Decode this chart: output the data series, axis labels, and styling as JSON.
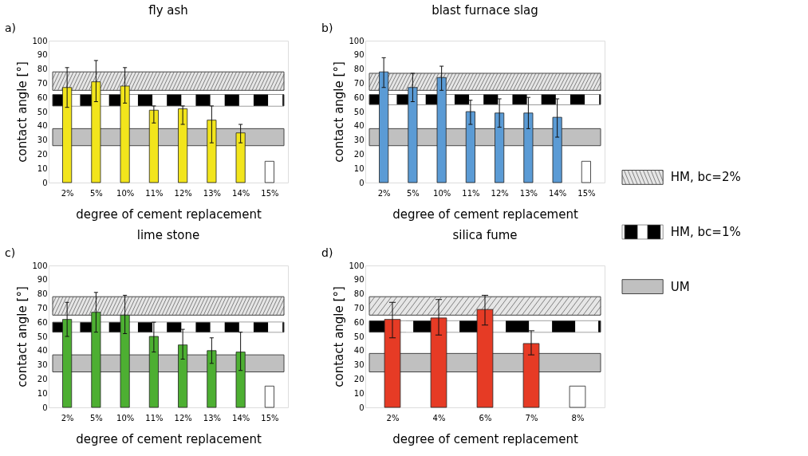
{
  "chart_data": [
    {
      "type": "bar",
      "title": "fly ash",
      "annotations": [
        "a)"
      ],
      "xlabel": "degree of cement replacement",
      "ylabel": "contact angle [°]",
      "categories": [
        "2%",
        "5%",
        "10%",
        "11%",
        "12%",
        "13%",
        "14%",
        "15%"
      ],
      "values": [
        67,
        71,
        68,
        51,
        52,
        44,
        35,
        15
      ],
      "colors": [
        "#f2e51c",
        "#f2e51c",
        "#f2e51c",
        "#f2e51c",
        "#f2e51c",
        "#f2e51c",
        "#f2e51c",
        "#ffffff"
      ],
      "errors": [
        [
          53,
          81
        ],
        [
          57,
          86
        ],
        [
          56,
          81
        ],
        [
          42,
          54
        ],
        [
          41,
          54
        ],
        [
          28,
          54
        ],
        [
          28,
          41
        ],
        null
      ],
      "ylim": [
        0,
        100
      ],
      "yticks": [
        0,
        10,
        20,
        30,
        40,
        50,
        60,
        70,
        80,
        90,
        100
      ],
      "bands": [
        {
          "axis": "y",
          "from": 65,
          "to": 78,
          "label": "HM, bc=2%",
          "color": "#e6e6e6"
        },
        {
          "axis": "y",
          "from": 54,
          "to": 62,
          "label": "HM, bc=1%",
          "color": "#000000"
        },
        {
          "axis": "y",
          "from": 26,
          "to": 38,
          "label": "UM",
          "color": "#c0c0c0"
        }
      ],
      "legend": "right"
    },
    {
      "type": "bar",
      "title": "blast furnace slag",
      "annotations": [
        "b)"
      ],
      "xlabel": "degree of cement replacement",
      "ylabel": "contact angle [°]",
      "categories": [
        "2%",
        "5%",
        "10%",
        "11%",
        "12%",
        "13%",
        "14%",
        "15%"
      ],
      "values": [
        78,
        67,
        74,
        50,
        49,
        49,
        46,
        15
      ],
      "colors": [
        "#5b9bd5",
        "#5b9bd5",
        "#5b9bd5",
        "#5b9bd5",
        "#5b9bd5",
        "#5b9bd5",
        "#5b9bd5",
        "#ffffff"
      ],
      "errors": [
        [
          67,
          88
        ],
        [
          57,
          77
        ],
        [
          65,
          82
        ],
        [
          41,
          58
        ],
        [
          39,
          59
        ],
        [
          38,
          60
        ],
        [
          32,
          59
        ],
        null
      ],
      "ylim": [
        0,
        100
      ],
      "yticks": [
        0,
        10,
        20,
        30,
        40,
        50,
        60,
        70,
        80,
        90,
        100
      ],
      "bands": [
        {
          "axis": "y",
          "from": 65,
          "to": 77,
          "color": "#e6e6e6"
        },
        {
          "axis": "y",
          "from": 55,
          "to": 62,
          "color": "#000000"
        },
        {
          "axis": "y",
          "from": 26,
          "to": 38,
          "color": "#c0c0c0"
        }
      ]
    },
    {
      "type": "bar",
      "title": "lime stone",
      "annotations": [
        "c)"
      ],
      "xlabel": "degree of cement replacement",
      "ylabel": "contact angle [°]",
      "categories": [
        "2%",
        "5%",
        "10%",
        "11%",
        "12%",
        "13%",
        "14%",
        "15%"
      ],
      "values": [
        62,
        67,
        65,
        50,
        44,
        40,
        39,
        15
      ],
      "colors": [
        "#4daf32",
        "#4daf32",
        "#4daf32",
        "#4daf32",
        "#4daf32",
        "#4daf32",
        "#4daf32",
        "#ffffff"
      ],
      "errors": [
        [
          50,
          74
        ],
        [
          53,
          81
        ],
        [
          52,
          79
        ],
        [
          39,
          60
        ],
        [
          34,
          55
        ],
        [
          31,
          49
        ],
        [
          26,
          53
        ],
        null
      ],
      "ylim": [
        0,
        100
      ],
      "yticks": [
        0,
        10,
        20,
        30,
        40,
        50,
        60,
        70,
        80,
        90,
        100
      ],
      "bands": [
        {
          "axis": "y",
          "from": 65,
          "to": 78,
          "color": "#e6e6e6"
        },
        {
          "axis": "y",
          "from": 53,
          "to": 60,
          "color": "#000000"
        },
        {
          "axis": "y",
          "from": 25,
          "to": 37,
          "color": "#c0c0c0"
        }
      ]
    },
    {
      "type": "bar",
      "title": "silica fume",
      "annotations": [
        "d)"
      ],
      "xlabel": "degree of cement replacement",
      "ylabel": "contact angle [°]",
      "categories": [
        "2%",
        "4%",
        "6%",
        "7%",
        "8%"
      ],
      "values": [
        62,
        63,
        69,
        45,
        15
      ],
      "colors": [
        "#e63b25",
        "#e63b25",
        "#e63b25",
        "#e63b25",
        "#ffffff"
      ],
      "errors": [
        [
          49,
          74
        ],
        [
          51,
          76
        ],
        [
          58,
          79
        ],
        [
          37,
          54
        ],
        null
      ],
      "ylim": [
        0,
        100
      ],
      "yticks": [
        0,
        10,
        20,
        30,
        40,
        50,
        60,
        70,
        80,
        90,
        100
      ],
      "bands": [
        {
          "axis": "y",
          "from": 65,
          "to": 78,
          "color": "#e6e6e6"
        },
        {
          "axis": "y",
          "from": 53,
          "to": 61,
          "color": "#000000"
        },
        {
          "axis": "y",
          "from": 25,
          "to": 38,
          "color": "#c0c0c0"
        }
      ]
    }
  ]
}
